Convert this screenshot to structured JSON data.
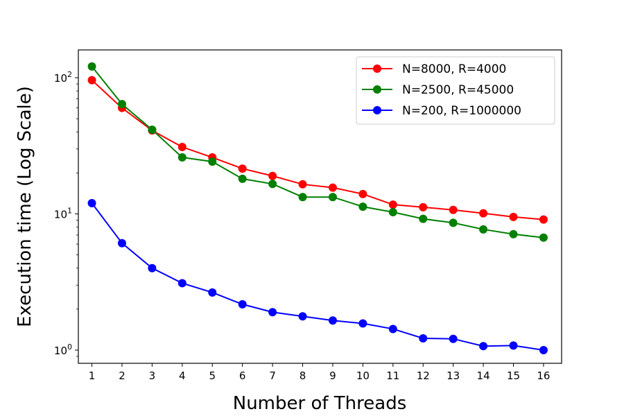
{
  "chart_data": {
    "type": "line",
    "title": "",
    "xlabel": "Number of Threads",
    "ylabel": "Execution time (Log Scale)",
    "x": [
      1,
      2,
      3,
      4,
      5,
      6,
      7,
      8,
      9,
      10,
      11,
      12,
      13,
      14,
      15,
      16
    ],
    "x_tick_labels": [
      "1",
      "2",
      "3",
      "4",
      "5",
      "6",
      "7",
      "8",
      "9",
      "10",
      "11",
      "12",
      "13",
      "14",
      "15",
      "16"
    ],
    "xlim": [
      0.55,
      16.6
    ],
    "yscale": "log",
    "ylim": [
      0.8,
      160
    ],
    "y_ticks": [
      1,
      10,
      100
    ],
    "y_tick_labels": [
      {
        "base": "10",
        "exp": "0"
      },
      {
        "base": "10",
        "exp": "1"
      },
      {
        "base": "10",
        "exp": "2"
      }
    ],
    "grid": false,
    "legend": "top-right",
    "series": [
      {
        "name": "N=8000, R=4000",
        "color": "#ff0000",
        "values": [
          96,
          60,
          41,
          31,
          26,
          21.5,
          19,
          16.5,
          15.6,
          14,
          11.7,
          11.2,
          10.7,
          10.1,
          9.5,
          9.1
        ]
      },
      {
        "name": "N=2500, R=45000",
        "color": "#008000",
        "values": [
          121,
          64,
          41.5,
          26,
          24.2,
          18.1,
          16.6,
          13.3,
          13.3,
          11.3,
          10.3,
          9.2,
          8.6,
          7.7,
          7.1,
          6.7
        ]
      },
      {
        "name": "N=200, R=1000000",
        "color": "#0000ff",
        "values": [
          12,
          6.1,
          4.0,
          3.1,
          2.65,
          2.17,
          1.9,
          1.77,
          1.65,
          1.57,
          1.43,
          1.22,
          1.21,
          1.07,
          1.08,
          1.0
        ]
      }
    ]
  }
}
